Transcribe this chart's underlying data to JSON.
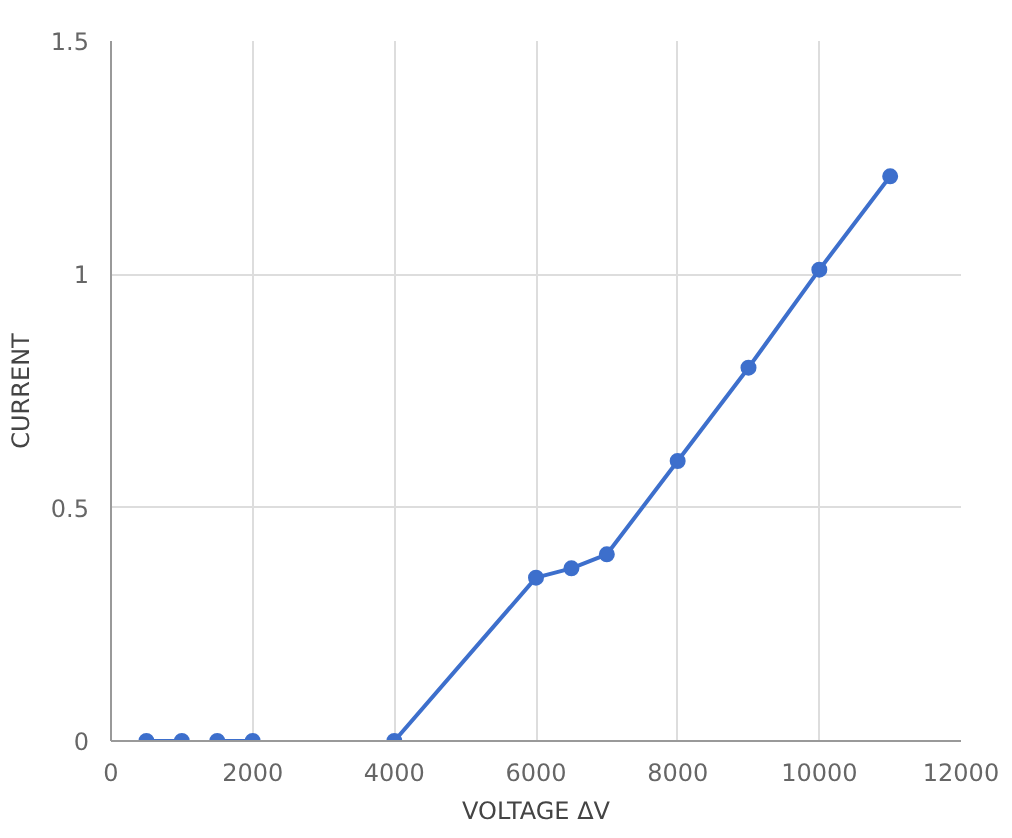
{
  "chart_data": {
    "type": "line",
    "xlabel": "VOLTAGE ΔV",
    "ylabel": "CURRENT",
    "series": [
      {
        "color": "#3d6fcc",
        "x": [
          500,
          1000
        ],
        "values": [
          0,
          0
        ]
      },
      {
        "color": "#3d6fcc",
        "x": [
          1500,
          2000
        ],
        "values": [
          0,
          0
        ]
      },
      {
        "color": "#3d6fcc",
        "x": [
          4000,
          6000,
          6500,
          7000,
          8000,
          9000,
          10000,
          11000
        ],
        "values": [
          0,
          0.35,
          0.37,
          0.4,
          0.6,
          0.8,
          1.01,
          1.21
        ]
      }
    ],
    "xlim": [
      0,
      12000
    ],
    "xticks": [
      0,
      2000,
      4000,
      6000,
      8000,
      10000,
      12000
    ],
    "ylim": [
      0,
      1.5
    ],
    "yticks": [
      0,
      0.5,
      1,
      1.5
    ],
    "grid": true,
    "marker": "circle",
    "line_style": "solid"
  }
}
